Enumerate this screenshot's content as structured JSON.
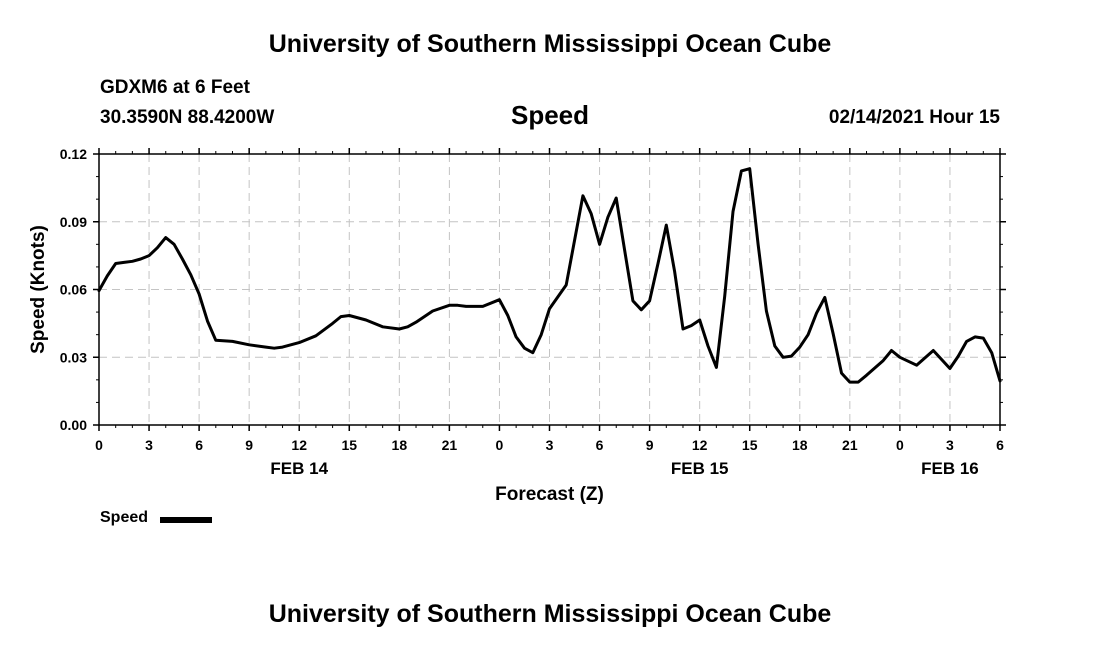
{
  "header": {
    "title": "University of Southern Mississippi Ocean Cube",
    "station": "GDXM6 at 6 Feet",
    "coords": "30.3590N 88.4200W",
    "datetime": "02/14/2021 Hour 15"
  },
  "footer": {
    "title": "University of Southern Mississippi Ocean Cube"
  },
  "chart_data": {
    "type": "line",
    "title": "Speed",
    "xlabel": "Forecast (Z)",
    "ylabel": "Speed (Knots)",
    "ylim": [
      0,
      0.12
    ],
    "xlim": [
      0,
      54
    ],
    "x_units": "hours from FEB 14 00Z",
    "yticks": [
      {
        "value": 0,
        "label": "0.00"
      },
      {
        "value": 0.03,
        "label": "0.03"
      },
      {
        "value": 0.06,
        "label": "0.06"
      },
      {
        "value": 0.09,
        "label": "0.09"
      },
      {
        "value": 0.12,
        "label": "0.12"
      }
    ],
    "xticks": [
      {
        "value": 0,
        "label": "0"
      },
      {
        "value": 3,
        "label": "3"
      },
      {
        "value": 6,
        "label": "6"
      },
      {
        "value": 9,
        "label": "9"
      },
      {
        "value": 12,
        "label": "12"
      },
      {
        "value": 15,
        "label": "15"
      },
      {
        "value": 18,
        "label": "18"
      },
      {
        "value": 21,
        "label": "21"
      },
      {
        "value": 24,
        "label": "0"
      },
      {
        "value": 27,
        "label": "3"
      },
      {
        "value": 30,
        "label": "6"
      },
      {
        "value": 33,
        "label": "9"
      },
      {
        "value": 36,
        "label": "12"
      },
      {
        "value": 39,
        "label": "15"
      },
      {
        "value": 42,
        "label": "18"
      },
      {
        "value": 45,
        "label": "21"
      },
      {
        "value": 48,
        "label": "0"
      },
      {
        "value": 51,
        "label": "3"
      },
      {
        "value": 54,
        "label": "6"
      }
    ],
    "date_labels": [
      {
        "value": 12,
        "label": "FEB 14"
      },
      {
        "value": 36,
        "label": "FEB 15"
      },
      {
        "value": 51,
        "label": "FEB 16"
      }
    ],
    "grid": true,
    "legend": {
      "position": "bottom-left",
      "entries": [
        "Speed"
      ]
    },
    "series": [
      {
        "name": "Speed",
        "color": "#000000",
        "x": [
          0,
          0.5,
          1,
          1.5,
          2,
          2.5,
          3,
          3.5,
          4,
          4.5,
          5,
          5.5,
          6,
          6.5,
          7,
          8,
          9,
          10,
          10.5,
          11,
          12,
          13,
          14,
          14.5,
          15,
          16,
          17,
          18,
          18.5,
          19,
          20,
          21,
          21.5,
          22,
          23,
          24,
          24.5,
          25,
          25.5,
          26,
          26.5,
          27,
          28,
          29,
          29.5,
          30,
          30.5,
          31,
          31.5,
          32,
          32.5,
          33,
          33.5,
          34,
          34.5,
          35,
          35.5,
          36,
          36.5,
          37,
          37.5,
          38,
          38.5,
          39,
          39.5,
          40,
          40.5,
          41,
          41.5,
          42,
          42.5,
          43,
          43.5,
          44,
          44.5,
          45,
          45.5,
          46,
          47,
          47.5,
          48,
          49,
          50,
          51,
          51.5,
          52,
          52.5,
          53,
          53.5,
          54
        ],
        "values": [
          0.0595,
          0.066,
          0.0715,
          0.072,
          0.0725,
          0.0735,
          0.075,
          0.0785,
          0.083,
          0.08,
          0.0735,
          0.0665,
          0.058,
          0.046,
          0.0375,
          0.037,
          0.0355,
          0.0345,
          0.034,
          0.0345,
          0.0365,
          0.0395,
          0.045,
          0.048,
          0.0485,
          0.0465,
          0.0435,
          0.0425,
          0.0435,
          0.0455,
          0.0505,
          0.053,
          0.053,
          0.0525,
          0.0525,
          0.0555,
          0.0485,
          0.039,
          0.034,
          0.032,
          0.04,
          0.0515,
          0.062,
          0.1015,
          0.0935,
          0.08,
          0.092,
          0.1005,
          0.0775,
          0.055,
          0.051,
          0.055,
          0.0715,
          0.0885,
          0.068,
          0.0425,
          0.044,
          0.0465,
          0.035,
          0.0255,
          0.057,
          0.0945,
          0.1125,
          0.1135,
          0.08,
          0.0505,
          0.035,
          0.03,
          0.0305,
          0.0345,
          0.04,
          0.0495,
          0.0565,
          0.0405,
          0.023,
          0.019,
          0.019,
          0.022,
          0.0285,
          0.033,
          0.03,
          0.0265,
          0.033,
          0.025,
          0.0305,
          0.037,
          0.039,
          0.0385,
          0.032,
          0.0195
        ]
      }
    ]
  }
}
